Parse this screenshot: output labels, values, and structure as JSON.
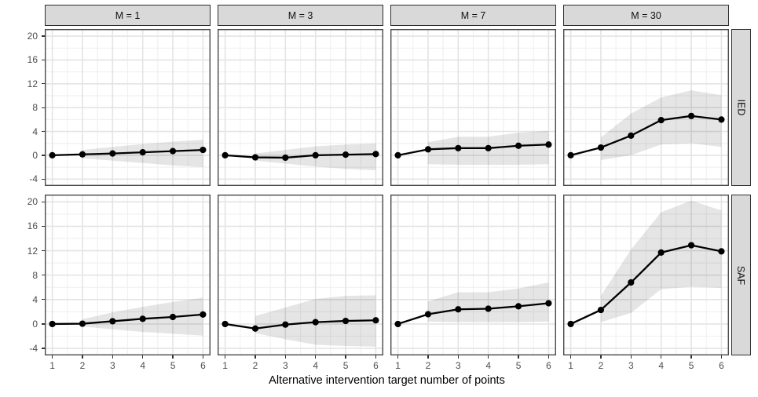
{
  "chart_data": {
    "type": "line",
    "title": "",
    "xlabel": "Alternative intervention target number of points",
    "ylabel": "",
    "legend": "none",
    "grid": true,
    "facet_cols": [
      "M = 1",
      "M = 3",
      "M = 7",
      "M = 30"
    ],
    "facet_rows": [
      "IED",
      "SAF"
    ],
    "x": [
      1,
      2,
      3,
      4,
      5,
      6
    ],
    "x_ticks": [
      1,
      2,
      3,
      4,
      5,
      6
    ],
    "y_ticks": [
      -4,
      0,
      4,
      8,
      12,
      16,
      20
    ],
    "xlim": [
      0.75,
      6.25
    ],
    "ylim": [
      -5.15,
      21.2
    ],
    "panels": [
      {
        "row": "IED",
        "col": "M = 1",
        "y": [
          0,
          0.15,
          0.3,
          0.5,
          0.7,
          0.9
        ],
        "ribbon": {
          "x": [
            2,
            3,
            4,
            5,
            6
          ],
          "lower": [
            -0.5,
            -0.9,
            -1.3,
            -1.7,
            -2.0
          ],
          "upper": [
            0.9,
            1.4,
            1.9,
            2.3,
            2.6
          ]
        }
      },
      {
        "row": "IED",
        "col": "M = 3",
        "y": [
          0,
          -0.35,
          -0.4,
          0,
          0.1,
          0.2
        ],
        "ribbon": {
          "x": [
            2,
            3,
            4,
            5,
            6
          ],
          "lower": [
            -0.9,
            -1.4,
            -1.9,
            -2.3,
            -2.5
          ],
          "upper": [
            0.3,
            0.9,
            1.5,
            1.8,
            2.0
          ]
        }
      },
      {
        "row": "IED",
        "col": "M = 7",
        "y": [
          0,
          1.0,
          1.2,
          1.2,
          1.6,
          1.8
        ],
        "ribbon": {
          "x": [
            2,
            3,
            4,
            5,
            6
          ],
          "lower": [
            -1.5,
            -1.6,
            -1.6,
            -1.6,
            -1.5
          ],
          "upper": [
            2.2,
            3.1,
            3.1,
            3.8,
            4.1
          ]
        }
      },
      {
        "row": "IED",
        "col": "M = 30",
        "y": [
          0,
          1.3,
          3.3,
          5.9,
          6.6,
          6.0
        ],
        "ribbon": {
          "x": [
            2,
            3,
            4,
            5,
            6
          ],
          "lower": [
            -0.8,
            0.0,
            1.8,
            2.0,
            1.4
          ],
          "upper": [
            3.0,
            7.0,
            9.7,
            10.9,
            10.1
          ]
        }
      },
      {
        "row": "SAF",
        "col": "M = 1",
        "y": [
          0,
          0.05,
          0.45,
          0.85,
          1.15,
          1.55
        ],
        "ribbon": {
          "x": [
            2,
            3,
            4,
            5,
            6
          ],
          "lower": [
            -0.4,
            -0.9,
            -1.3,
            -1.6,
            -1.9
          ],
          "upper": [
            0.8,
            1.9,
            2.8,
            3.6,
            4.3
          ]
        }
      },
      {
        "row": "SAF",
        "col": "M = 3",
        "y": [
          0,
          -0.75,
          -0.1,
          0.3,
          0.5,
          0.6
        ],
        "ribbon": {
          "x": [
            2,
            3,
            4,
            5,
            6
          ],
          "lower": [
            -1.5,
            -2.5,
            -3.4,
            -3.6,
            -3.7
          ],
          "upper": [
            1.3,
            2.7,
            4.1,
            4.6,
            4.7
          ]
        }
      },
      {
        "row": "SAF",
        "col": "M = 7",
        "y": [
          0,
          1.6,
          2.4,
          2.5,
          2.9,
          3.4
        ],
        "ribbon": {
          "x": [
            2,
            3,
            4,
            5,
            6
          ],
          "lower": [
            0.4,
            0.3,
            0.3,
            0.3,
            0.4
          ],
          "upper": [
            3.7,
            5.2,
            5.2,
            5.8,
            6.8
          ]
        }
      },
      {
        "row": "SAF",
        "col": "M = 30",
        "y": [
          0,
          2.3,
          6.8,
          11.7,
          12.9,
          11.9
        ],
        "ribbon": {
          "x": [
            2,
            3,
            4,
            5,
            6
          ],
          "lower": [
            0.3,
            1.8,
            5.7,
            6.1,
            5.9
          ],
          "upper": [
            4.6,
            12.2,
            18.3,
            20.2,
            18.6
          ]
        }
      }
    ]
  },
  "colors": {
    "line": "#000000",
    "point": "#000000",
    "ribbon_fill": "rgba(0,0,0,0.10)",
    "strip_fill": "#D9D9D9",
    "strip_border": "#2E2E2E",
    "panel_border": "#4A4A4A",
    "grid_major": "#E4E4E4",
    "grid_minor": "#F1F1F1",
    "tick_label": "#4D4D4D",
    "tick_mark": "#333333",
    "axis_title": "#000000",
    "background": "#FFFFFF"
  }
}
